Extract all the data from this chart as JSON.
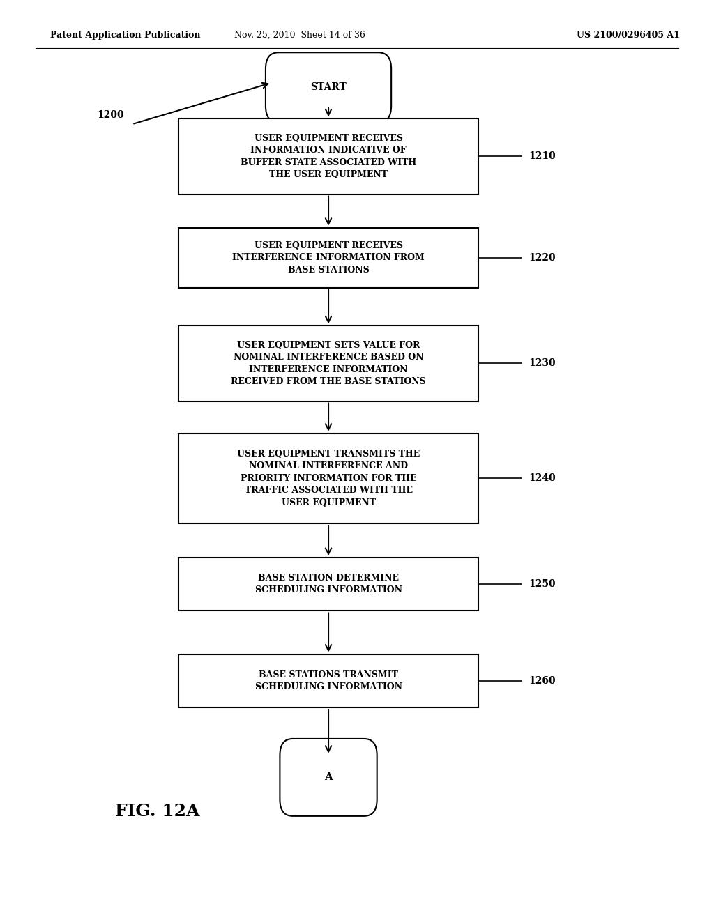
{
  "header_left": "Patent Application Publication",
  "header_mid": "Nov. 25, 2010  Sheet 14 of 36",
  "header_right": "US 2100/0296405 A1",
  "fig_label": "FIG. 12A",
  "diagram_label": "1200",
  "start_label": "START",
  "end_label": "A",
  "boxes": [
    {
      "text": "USER EQUIPMENT RECEIVES\nINFORMATION INDICATIVE OF\nBUFFER STATE ASSOCIATED WITH\nTHE USER EQUIPMENT",
      "label": "1210"
    },
    {
      "text": "USER EQUIPMENT RECEIVES\nINTERFERENCE INFORMATION FROM\nBASE STATIONS",
      "label": "1220"
    },
    {
      "text": "USER EQUIPMENT SETS VALUE FOR\nNOMINAL INTERFERENCE BASED ON\nINTERFERENCE INFORMATION\nRECEIVED FROM THE BASE STATIONS",
      "label": "1230"
    },
    {
      "text": "USER EQUIPMENT TRANSMITS THE\nNOMINAL INTERFERENCE AND\nPRIORITY INFORMATION FOR THE\nTRAFFIC ASSOCIATED WITH THE\nUSER EQUIPMENT",
      "label": "1240"
    },
    {
      "text": "BASE STATION DETERMINE\nSCHEDULING INFORMATION",
      "label": "1250"
    },
    {
      "text": "BASE STATIONS TRANSMIT\nSCHEDULING INFORMATION",
      "label": "1260"
    }
  ],
  "bg_color": "#ffffff",
  "box_edge_color": "#000000",
  "text_color": "#000000",
  "arrow_color": "#000000",
  "line_width": 1.5,
  "font_size_box": 9.0,
  "font_size_label": 10,
  "font_size_header": 9,
  "font_size_fig": 18
}
